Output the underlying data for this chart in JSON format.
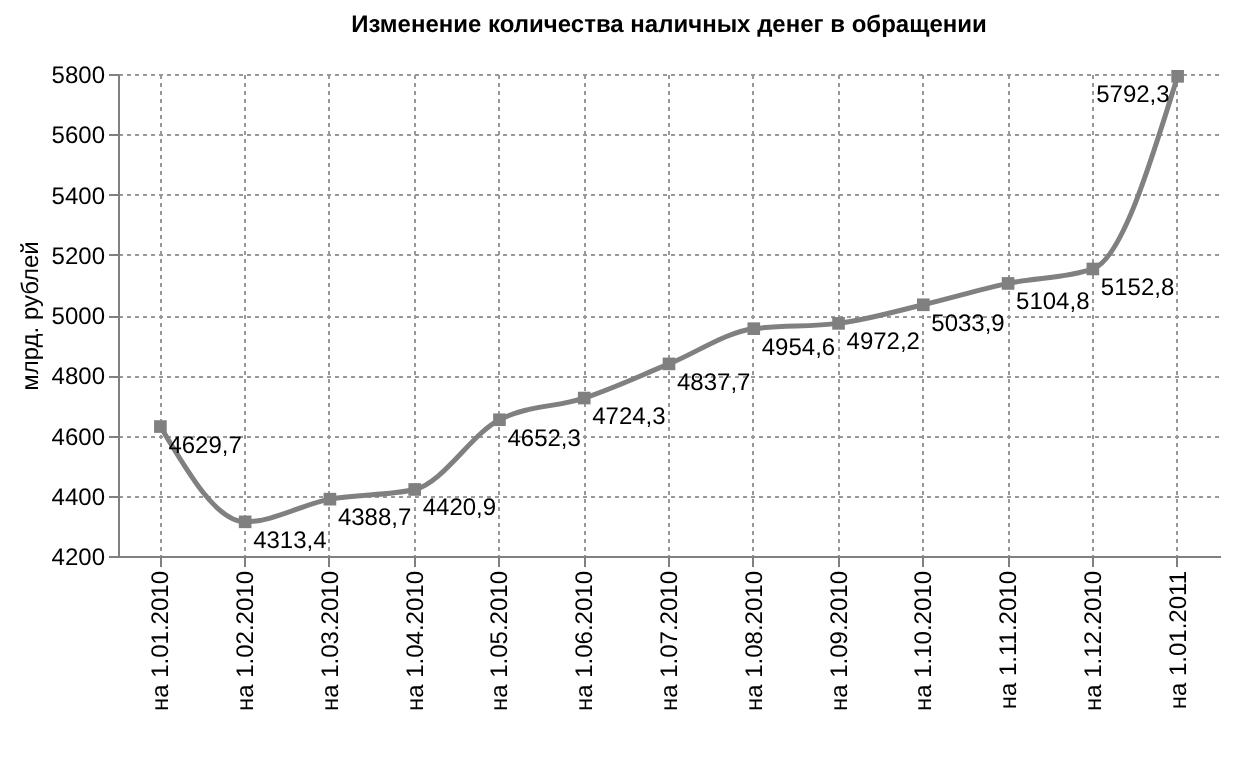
{
  "chart_data": {
    "type": "line",
    "title": "Изменение количества наличных денег в обращении",
    "ylabel": "млрд. рублей",
    "categories": [
      "на 1.01.2010",
      "на 1.02.2010",
      "на 1.03.2010",
      "на 1.04.2010",
      "на 1.05.2010",
      "на 1.06.2010",
      "на 1.07.2010",
      "на 1.08.2010",
      "на 1.09.2010",
      "на 1.10.2010",
      "на 1.11.2010",
      "на 1.12.2010",
      "на 1.01.2011"
    ],
    "series": [
      {
        "color": "#808080",
        "values": [
          4629.7,
          4313.4,
          4388.7,
          4420.9,
          4652.3,
          4724.3,
          4837.7,
          4954.6,
          4972.2,
          5033.9,
          5104.8,
          5152.8,
          5792.3
        ],
        "value_labels": [
          "4629,7",
          "4313,4",
          "4388,7",
          "4420,9",
          "4652,3",
          "4724,3",
          "4837,7",
          "4954,6",
          "4972,2",
          "5033,9",
          "5104,8",
          "5152,8",
          "5792,3"
        ]
      }
    ],
    "ylim": [
      4200,
      5800
    ],
    "yticks": [
      4200,
      4400,
      4600,
      4800,
      5000,
      5200,
      5400,
      5600,
      5800
    ],
    "grid": true,
    "marker": "square",
    "line_style": "solid"
  }
}
